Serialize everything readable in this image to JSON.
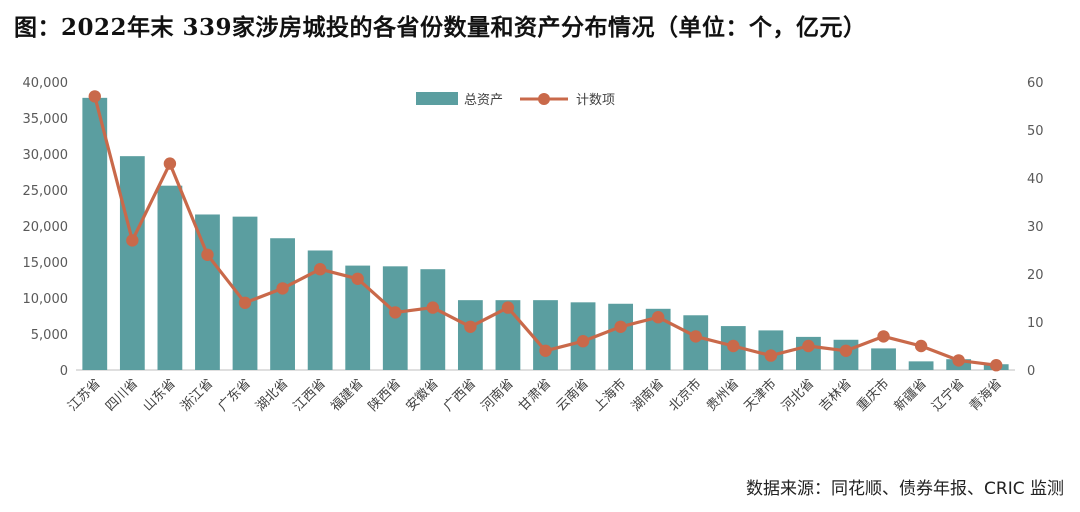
{
  "header": {
    "title": "图：2022年末 339家涉房城投的各省份数量和资产分布情况（单位：个，亿元）"
  },
  "footer": {
    "source": "数据来源：同花顺、债券年报、CRIC 监测"
  },
  "colors": {
    "bar": "#5b9ea0",
    "line": "#c9694a",
    "axis": "#bfbfbf"
  },
  "chart_data": {
    "type": "bar",
    "combo": "bar+line (dual axis)",
    "categories": [
      "江苏省",
      "四川省",
      "山东省",
      "浙江省",
      "广东省",
      "湖北省",
      "江西省",
      "福建省",
      "陕西省",
      "安徽省",
      "广西省",
      "河南省",
      "甘肃省",
      "云南省",
      "上海市",
      "湖南省",
      "北京市",
      "贵州省",
      "天津市",
      "河北省",
      "吉林省",
      "重庆市",
      "新疆省",
      "辽宁省",
      "青海省"
    ],
    "series": [
      {
        "name": "总资产",
        "type": "bar",
        "axis": "left",
        "values": [
          37800,
          29700,
          25600,
          21600,
          21300,
          18300,
          16600,
          14500,
          14400,
          14000,
          9700,
          9700,
          9700,
          9400,
          9200,
          8500,
          7600,
          6100,
          5500,
          4600,
          4200,
          3000,
          1200,
          1500,
          800
        ]
      },
      {
        "name": "计数项",
        "type": "line",
        "axis": "right",
        "values": [
          57,
          27,
          43,
          24,
          14,
          17,
          21,
          19,
          12,
          13,
          9,
          13,
          4,
          6,
          9,
          11,
          7,
          5,
          3,
          5,
          4,
          7,
          5,
          2,
          1
        ]
      }
    ],
    "ylim_left": [
      0,
      40000
    ],
    "ylim_right": [
      0,
      60
    ],
    "yticks_left": [
      "0",
      "5,000",
      "10,000",
      "15,000",
      "20,000",
      "25,000",
      "30,000",
      "35,000",
      "40,000"
    ],
    "yticks_right": [
      "0",
      "10",
      "20",
      "30",
      "40",
      "50",
      "60"
    ],
    "legend_position": "top-center",
    "grid": false
  }
}
